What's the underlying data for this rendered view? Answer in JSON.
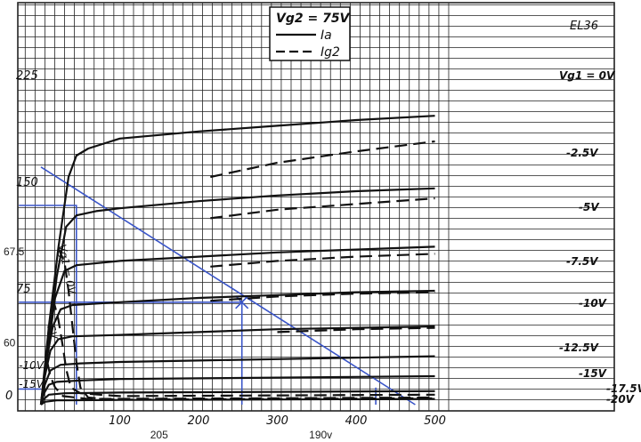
{
  "chart_data": {
    "type": "line",
    "title": "",
    "tube": "EL36",
    "legend": {
      "heading": "Vg2 = 75V",
      "entries": [
        {
          "name": "Ia",
          "style": "solid"
        },
        {
          "name": "Ig2",
          "style": "dashed"
        }
      ],
      "position": "top-center"
    },
    "xlabel": "",
    "ylabel": "",
    "xlim": [
      0,
      500
    ],
    "ylim": [
      0,
      260
    ],
    "grid": true,
    "x_ticks": [
      {
        "value": 100,
        "label": "100"
      },
      {
        "value": 200,
        "label": "200"
      },
      {
        "value": 300,
        "label": "300"
      },
      {
        "value": 400,
        "label": "400"
      },
      {
        "value": 500,
        "label": "500"
      }
    ],
    "y_ticks": [
      {
        "value": 225,
        "label": "225"
      },
      {
        "value": 150,
        "label": "150"
      },
      {
        "value": 75,
        "label": "75"
      },
      {
        "value": 0,
        "label": "0"
      }
    ],
    "annotations_left": [
      {
        "label": "67.5",
        "y": 108
      },
      {
        "label": "60",
        "y": 44
      }
    ],
    "annotations_bottom": [
      {
        "label": "205",
        "x": 150
      },
      {
        "label": "190v",
        "x": 355
      }
    ],
    "anode_series": [
      {
        "name": "Vg1 = 0V",
        "label": "Vg1 = 0V",
        "points": [
          [
            0,
            0
          ],
          [
            10,
            55
          ],
          [
            22,
            110
          ],
          [
            35,
            160
          ],
          [
            45,
            175
          ],
          [
            60,
            180
          ],
          [
            100,
            187
          ],
          [
            200,
            192
          ],
          [
            300,
            196
          ],
          [
            400,
            200
          ],
          [
            500,
            203
          ]
        ]
      },
      {
        "name": "-2.5V",
        "label": "-2.5V",
        "points": [
          [
            0,
            0
          ],
          [
            10,
            45
          ],
          [
            20,
            90
          ],
          [
            32,
            125
          ],
          [
            45,
            133
          ],
          [
            70,
            136
          ],
          [
            100,
            138
          ],
          [
            200,
            143
          ],
          [
            300,
            147
          ],
          [
            400,
            150
          ],
          [
            500,
            152
          ]
        ]
      },
      {
        "name": "-5V",
        "label": "-5V",
        "points": [
          [
            0,
            0
          ],
          [
            8,
            35
          ],
          [
            18,
            75
          ],
          [
            30,
            94
          ],
          [
            45,
            98
          ],
          [
            100,
            101
          ],
          [
            200,
            104
          ],
          [
            300,
            107
          ],
          [
            400,
            109
          ],
          [
            500,
            111
          ]
        ]
      },
      {
        "name": "-7.5V",
        "label": "-7.5V",
        "points": [
          [
            0,
            0
          ],
          [
            6,
            28
          ],
          [
            15,
            55
          ],
          [
            25,
            67
          ],
          [
            40,
            70
          ],
          [
            100,
            72
          ],
          [
            200,
            75
          ],
          [
            300,
            77
          ],
          [
            400,
            79
          ],
          [
            500,
            80
          ]
        ]
      },
      {
        "name": "-10V",
        "label": "-10V",
        "points": [
          [
            0,
            0
          ],
          [
            5,
            20
          ],
          [
            12,
            38
          ],
          [
            22,
            46
          ],
          [
            40,
            48
          ],
          [
            100,
            49
          ],
          [
            200,
            51
          ],
          [
            300,
            53
          ],
          [
            400,
            54
          ],
          [
            500,
            55
          ]
        ]
      },
      {
        "name": "-12.5V",
        "label": "-12.5V",
        "points": [
          [
            0,
            0
          ],
          [
            5,
            14
          ],
          [
            12,
            24
          ],
          [
            25,
            28
          ],
          [
            50,
            29
          ],
          [
            100,
            30
          ],
          [
            200,
            31
          ],
          [
            300,
            32
          ],
          [
            400,
            33
          ],
          [
            500,
            34
          ]
        ]
      },
      {
        "name": "-15V",
        "label": "-15V",
        "points": [
          [
            0,
            0
          ],
          [
            4,
            8
          ],
          [
            10,
            14
          ],
          [
            20,
            16
          ],
          [
            50,
            17
          ],
          [
            100,
            18
          ],
          [
            200,
            18.5
          ],
          [
            300,
            19
          ],
          [
            400,
            19.5
          ],
          [
            500,
            20
          ]
        ]
      },
      {
        "name": "-17.5V",
        "label": "-17.5V",
        "points": [
          [
            0,
            0
          ],
          [
            4,
            4
          ],
          [
            10,
            7
          ],
          [
            30,
            8
          ],
          [
            100,
            8.5
          ],
          [
            300,
            9
          ],
          [
            500,
            9.5
          ]
        ]
      },
      {
        "name": "-20V",
        "label": "-20V",
        "points": [
          [
            0,
            0
          ],
          [
            5,
            2
          ],
          [
            20,
            3
          ],
          [
            100,
            3.3
          ],
          [
            300,
            3.6
          ],
          [
            500,
            4
          ]
        ]
      }
    ],
    "screen_series": [
      {
        "name": "Ig2 Vg1 = 0V",
        "points": [
          [
            215,
            160
          ],
          [
            300,
            170
          ],
          [
            400,
            178
          ],
          [
            500,
            185
          ]
        ]
      },
      {
        "name": "Ig2 -2.5V",
        "points": [
          [
            215,
            131
          ],
          [
            300,
            137
          ],
          [
            400,
            141
          ],
          [
            500,
            145
          ]
        ]
      },
      {
        "name": "Ig2 -5V",
        "points": [
          [
            215,
            97
          ],
          [
            300,
            101
          ],
          [
            400,
            104
          ],
          [
            500,
            106
          ]
        ]
      },
      {
        "name": "Ig2 -7.5V",
        "points": [
          [
            215,
            73
          ],
          [
            300,
            76
          ],
          [
            400,
            78
          ],
          [
            500,
            79
          ]
        ]
      },
      {
        "name": "Ig2 -10V",
        "points": [
          [
            300,
            51
          ],
          [
            400,
            53
          ],
          [
            500,
            54
          ]
        ]
      },
      {
        "name": "Ig2 Vg1 = 0V low-voltage",
        "points": [
          [
            22,
            110
          ],
          [
            30,
            100
          ],
          [
            35,
            80
          ],
          [
            40,
            55
          ],
          [
            45,
            30
          ],
          [
            50,
            12
          ],
          [
            60,
            5
          ],
          [
            80,
            4
          ],
          [
            100,
            3.5
          ],
          [
            300,
            4
          ],
          [
            500,
            4.5
          ]
        ]
      },
      {
        "name": "Ig2 -5V low-voltage",
        "points": [
          [
            15,
            75
          ],
          [
            22,
            60
          ],
          [
            28,
            40
          ],
          [
            32,
            25
          ],
          [
            38,
            12
          ],
          [
            50,
            8
          ],
          [
            100,
            6
          ],
          [
            300,
            6.5
          ],
          [
            500,
            7
          ]
        ]
      },
      {
        "name": "Ig2 -10V low-voltage",
        "points": [
          [
            8,
            30
          ],
          [
            12,
            20
          ],
          [
            18,
            12
          ],
          [
            28,
            6
          ],
          [
            60,
            4
          ],
          [
            300,
            4.5
          ],
          [
            500,
            5
          ]
        ]
      }
    ],
    "low_voltage_labels": [
      {
        "text": "Vg1 = 0V",
        "x": 22,
        "y": 112
      },
      {
        "text": "-5V",
        "x": 7,
        "y": 58
      },
      {
        "text": "-10V",
        "x": -28,
        "y": 25
      },
      {
        "text": "-15V",
        "x": -28,
        "y": 12
      }
    ],
    "load_lines": [
      {
        "points": [
          [
            0,
            167
          ],
          [
            475,
            0
          ]
        ],
        "color": "#3a55c8"
      }
    ],
    "guide_lines": [
      {
        "points": [
          [
            -28,
            140
          ],
          [
            45,
            140
          ],
          [
            45,
            0
          ]
        ],
        "color": "#3a55c8"
      },
      {
        "points": [
          [
            -28,
            72
          ],
          [
            255,
            72
          ],
          [
            255,
            0
          ]
        ],
        "color": "#3a55c8"
      },
      {
        "points": [
          [
            425,
            12
          ],
          [
            425,
            0
          ]
        ],
        "color": "#3a55c8"
      },
      {
        "points": [
          [
            -28,
            11
          ],
          [
            0,
            11
          ]
        ],
        "color": "#3a55c8"
      }
    ],
    "markers": [
      {
        "x": 255,
        "y": 72,
        "shape": "cross",
        "color": "#3a55c8"
      }
    ],
    "colors": {
      "curves": "#111111",
      "grid": "#222222",
      "annotation": "#3a55c8"
    }
  }
}
